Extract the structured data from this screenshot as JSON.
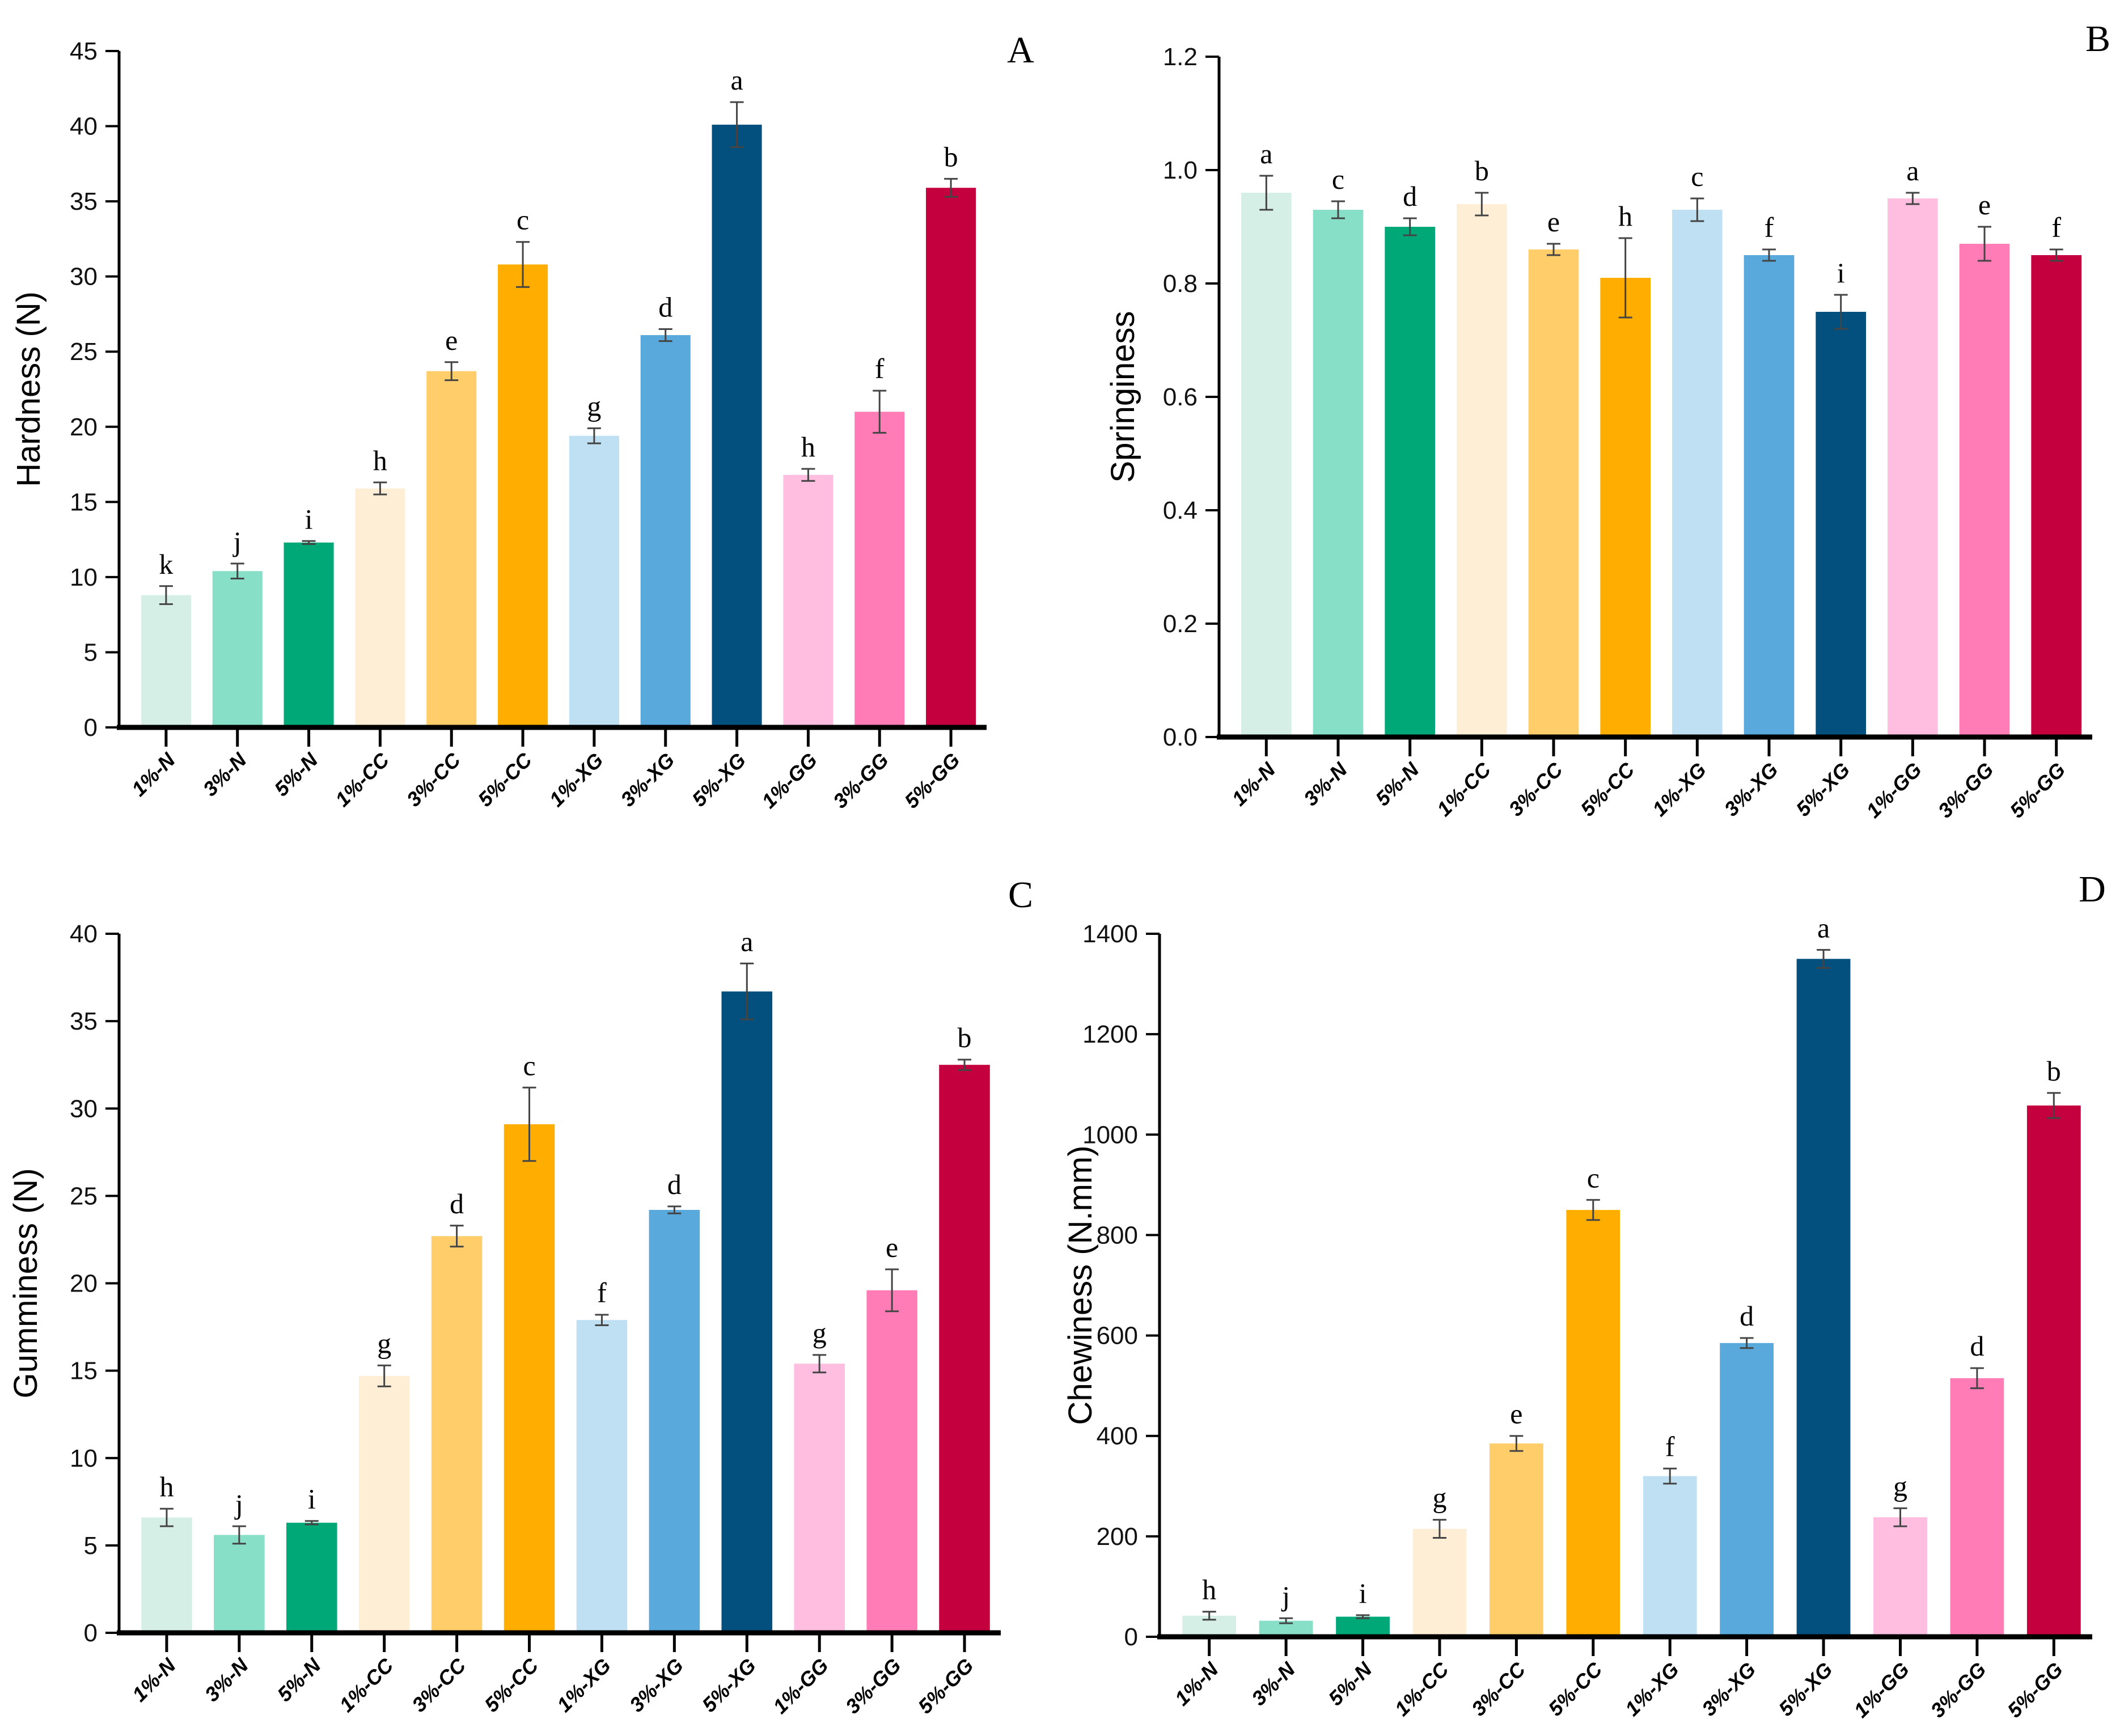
{
  "colors": [
    "#d6efe6",
    "#86dfc6",
    "#00a878",
    "#ffeed6",
    "#ffcd6a",
    "#ffae00",
    "#bfdff2",
    "#5aa9dc",
    "#03507e",
    "#ffbde0",
    "#ff7cb6",
    "#c4003f"
  ],
  "chart_data": [
    {
      "type": "bar",
      "panel": "A",
      "ylabel": "Hardness (N)",
      "ylim": [
        0,
        45
      ],
      "ystep": 5,
      "ydecimals": 0,
      "categories": [
        "1%-N",
        "3%-N",
        "5%-N",
        "1%-CC",
        "3%-CC",
        "5%-CC",
        "1%-XG",
        "3%-XG",
        "5%-XG",
        "1%-GG",
        "3%-GG",
        "5%-GG"
      ],
      "values": [
        8.8,
        10.4,
        12.3,
        15.9,
        23.7,
        30.8,
        19.4,
        26.1,
        40.1,
        16.8,
        21.0,
        35.9
      ],
      "errors": [
        0.6,
        0.5,
        0.1,
        0.4,
        0.6,
        1.5,
        0.5,
        0.4,
        1.5,
        0.4,
        1.4,
        0.6
      ],
      "letters": [
        "k",
        "j",
        "i",
        "h",
        "e",
        "c",
        "g",
        "d",
        "a",
        "h",
        "f",
        "b"
      ]
    },
    {
      "type": "bar",
      "panel": "B",
      "ylabel": "Springiness",
      "ylim": [
        0,
        1.2
      ],
      "ystep": 0.2,
      "ydecimals": 1,
      "categories": [
        "1%-N",
        "3%-N",
        "5%-N",
        "1%-CC",
        "3%-CC",
        "5%-CC",
        "1%-XG",
        "3%-XG",
        "5%-XG",
        "1%-GG",
        "3%-GG",
        "5%-GG"
      ],
      "values": [
        0.96,
        0.93,
        0.9,
        0.94,
        0.86,
        0.81,
        0.93,
        0.85,
        0.75,
        0.95,
        0.87,
        0.85
      ],
      "errors": [
        0.03,
        0.015,
        0.015,
        0.02,
        0.01,
        0.07,
        0.02,
        0.01,
        0.03,
        0.01,
        0.03,
        0.01
      ],
      "letters": [
        "a",
        "c",
        "d",
        "b",
        "e",
        "h",
        "c",
        "f",
        "i",
        "a",
        "e",
        "f"
      ]
    },
    {
      "type": "bar",
      "panel": "C",
      "ylabel": "Gumminess (N)",
      "ylim": [
        0,
        40
      ],
      "ystep": 5,
      "ydecimals": 0,
      "categories": [
        "1%-N",
        "3%-N",
        "5%-N",
        "1%-CC",
        "3%-CC",
        "5%-CC",
        "1%-XG",
        "3%-XG",
        "5%-XG",
        "1%-GG",
        "3%-GG",
        "5%-GG"
      ],
      "values": [
        6.6,
        5.6,
        6.3,
        14.7,
        22.7,
        29.1,
        17.9,
        24.2,
        36.7,
        15.4,
        19.6,
        32.5
      ],
      "errors": [
        0.5,
        0.5,
        0.1,
        0.6,
        0.6,
        2.1,
        0.3,
        0.2,
        1.6,
        0.5,
        1.2,
        0.3
      ],
      "letters": [
        "h",
        "j",
        "i",
        "g",
        "d",
        "c",
        "f",
        "d",
        "a",
        "g",
        "e",
        "b"
      ]
    },
    {
      "type": "bar",
      "panel": "D",
      "ylabel": "Chewiness (N.mm)",
      "ylim": [
        0,
        1400
      ],
      "ystep": 200,
      "ydecimals": 0,
      "categories": [
        "1%-N",
        "3%-N",
        "5%-N",
        "1%-CC",
        "3%-CC",
        "5%-CC",
        "1%-XG",
        "3%-XG",
        "5%-XG",
        "1%-GG",
        "3%-GG",
        "5%-GG"
      ],
      "values": [
        42,
        32,
        40,
        215,
        385,
        850,
        320,
        585,
        1350,
        238,
        515,
        1058
      ],
      "errors": [
        8,
        5,
        3,
        18,
        15,
        20,
        15,
        10,
        18,
        18,
        20,
        25
      ],
      "letters": [
        "h",
        "j",
        "i",
        "g",
        "e",
        "c",
        "f",
        "d",
        "a",
        "g",
        "d",
        "b"
      ]
    }
  ]
}
